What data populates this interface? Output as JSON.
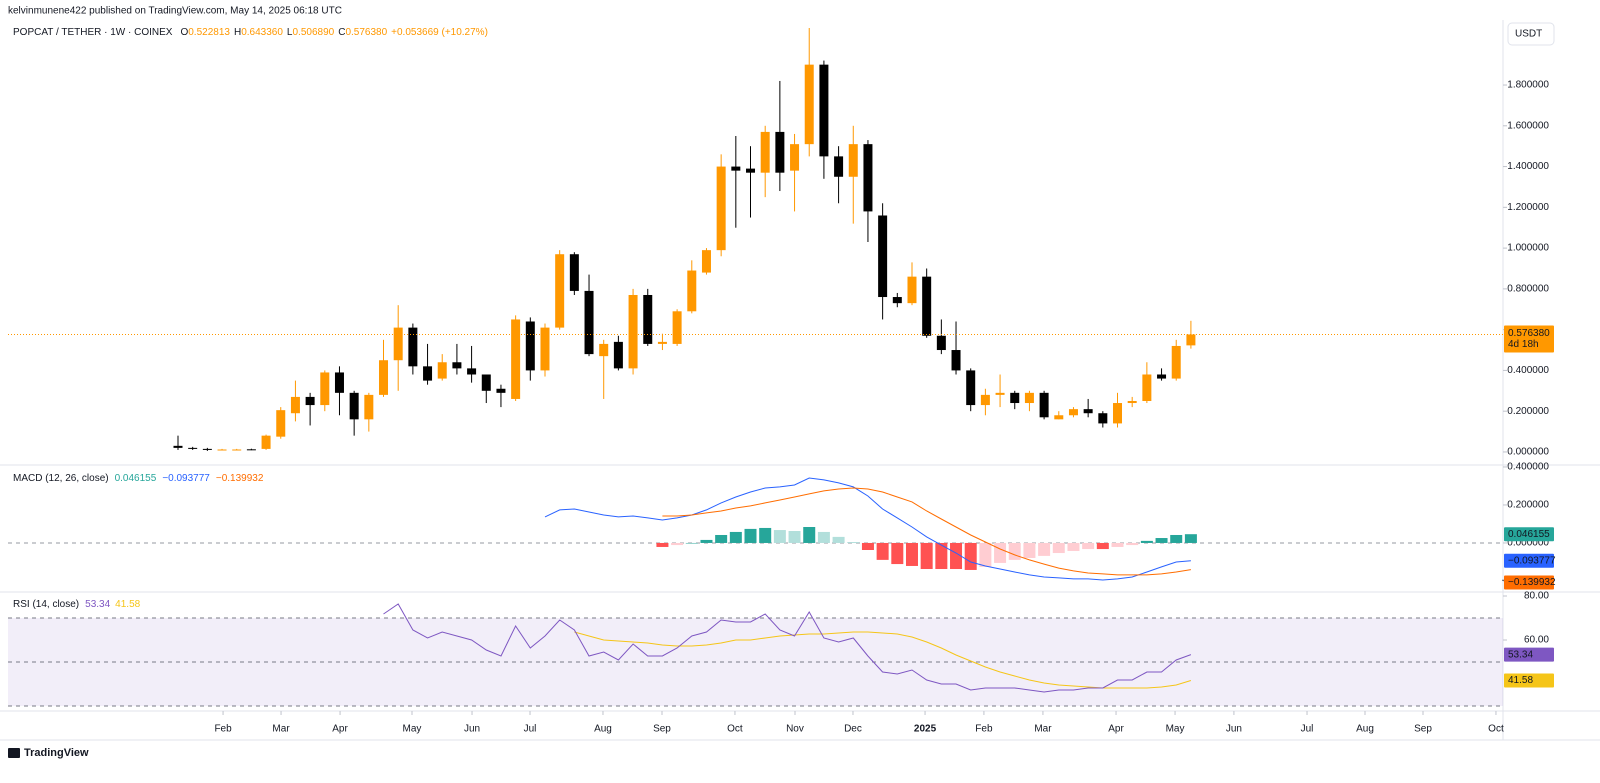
{
  "header": {
    "published": "kelvinmunene422 published on TradingView.com, May 14, 2025 06:18 UTC"
  },
  "footer": {
    "brand": "TradingView"
  },
  "chart_data": [
    {
      "type": "candlestick",
      "title": "POPCAT / TETHER · 1W · COINEX",
      "currency": "USDT",
      "legend": [
        {
          "key": "O",
          "value": "0.522813"
        },
        {
          "key": "H",
          "value": "0.643360"
        },
        {
          "key": "L",
          "value": "0.506890"
        },
        {
          "key": "C",
          "value": "0.576380"
        }
      ],
      "change": "+0.053669 (+10.27%)",
      "price_label": "0.576380",
      "countdown": "4d 18h",
      "up_color": "#ff9800",
      "down_color": "#000000",
      "x": [
        0,
        1,
        2,
        3,
        4,
        5,
        6,
        7,
        8,
        9,
        10,
        11,
        12,
        13,
        14,
        15,
        16,
        17,
        18,
        19,
        20,
        21,
        22,
        23,
        24,
        25,
        26,
        27,
        28,
        29,
        30,
        31,
        32,
        33,
        34,
        35,
        36,
        37,
        38,
        39,
        40,
        41,
        42,
        43,
        44,
        45,
        46,
        47,
        48,
        49,
        50,
        51,
        52,
        53,
        54,
        55,
        56,
        57,
        58,
        59,
        60,
        61,
        62,
        63,
        64,
        65,
        66,
        67,
        68,
        69
      ],
      "open": [
        0.03,
        0.02,
        0.015,
        0.01,
        0.01,
        0.013,
        0.015,
        0.075,
        0.19,
        0.27,
        0.23,
        0.39,
        0.29,
        0.16,
        0.28,
        0.45,
        0.61,
        0.42,
        0.36,
        0.44,
        0.41,
        0.38,
        0.31,
        0.26,
        0.64,
        0.4,
        0.61,
        0.97,
        0.79,
        0.47,
        0.54,
        0.41,
        0.77,
        0.53,
        0.53,
        0.69,
        0.88,
        0.99,
        1.4,
        1.39,
        1.37,
        1.57,
        1.38,
        1.51,
        1.9,
        1.45,
        1.35,
        1.51,
        1.16,
        0.76,
        0.73,
        0.86,
        0.57,
        0.5,
        0.4,
        0.23,
        0.28,
        0.29,
        0.24,
        0.29,
        0.16,
        0.18,
        0.21,
        0.19,
        0.14,
        0.24,
        0.25,
        0.38,
        0.36,
        0.522813
      ],
      "high": [
        0.08,
        0.025,
        0.02,
        0.015,
        0.015,
        0.016,
        0.085,
        0.22,
        0.35,
        0.29,
        0.4,
        0.42,
        0.3,
        0.29,
        0.55,
        0.72,
        0.63,
        0.53,
        0.48,
        0.53,
        0.52,
        0.38,
        0.33,
        0.67,
        0.66,
        0.63,
        0.99,
        0.98,
        0.87,
        0.55,
        0.57,
        0.8,
        0.8,
        0.58,
        0.7,
        0.94,
        1.0,
        1.46,
        1.55,
        1.5,
        1.6,
        1.82,
        1.56,
        2.08,
        1.92,
        1.5,
        1.6,
        1.53,
        1.22,
        0.78,
        0.93,
        0.9,
        0.65,
        0.64,
        0.41,
        0.31,
        0.38,
        0.3,
        0.3,
        0.3,
        0.2,
        0.22,
        0.26,
        0.2,
        0.29,
        0.27,
        0.44,
        0.41,
        0.55,
        0.64336
      ],
      "low": [
        0.01,
        0.01,
        0.005,
        0.008,
        0.008,
        0.009,
        0.01,
        0.065,
        0.15,
        0.13,
        0.2,
        0.18,
        0.08,
        0.1,
        0.27,
        0.3,
        0.38,
        0.33,
        0.35,
        0.38,
        0.34,
        0.24,
        0.22,
        0.25,
        0.35,
        0.37,
        0.6,
        0.77,
        0.47,
        0.26,
        0.4,
        0.38,
        0.52,
        0.5,
        0.52,
        0.68,
        0.87,
        0.96,
        1.1,
        1.15,
        1.25,
        1.28,
        1.18,
        1.45,
        1.34,
        1.22,
        1.12,
        1.03,
        0.65,
        0.71,
        0.72,
        0.56,
        0.48,
        0.38,
        0.2,
        0.18,
        0.22,
        0.21,
        0.2,
        0.16,
        0.16,
        0.17,
        0.17,
        0.12,
        0.12,
        0.22,
        0.24,
        0.35,
        0.35,
        0.50689
      ],
      "close": [
        0.02,
        0.015,
        0.01,
        0.012,
        0.012,
        0.01,
        0.08,
        0.205,
        0.27,
        0.23,
        0.39,
        0.29,
        0.16,
        0.28,
        0.45,
        0.61,
        0.42,
        0.35,
        0.44,
        0.41,
        0.38,
        0.3,
        0.29,
        0.65,
        0.4,
        0.61,
        0.97,
        0.79,
        0.48,
        0.53,
        0.41,
        0.77,
        0.53,
        0.54,
        0.69,
        0.89,
        0.99,
        1.4,
        1.38,
        1.37,
        1.57,
        1.37,
        1.51,
        1.9,
        1.45,
        1.35,
        1.51,
        1.18,
        0.76,
        0.73,
        0.86,
        0.57,
        0.5,
        0.4,
        0.23,
        0.28,
        0.29,
        0.24,
        0.29,
        0.17,
        0.18,
        0.21,
        0.19,
        0.14,
        0.24,
        0.25,
        0.38,
        0.36,
        0.52,
        0.57638
      ],
      "xlim": [
        -11.58,
        90.26
      ],
      "xticks": [
        {
          "value": 3.07,
          "label": "Feb"
        },
        {
          "value": 7.02,
          "label": "Mar"
        },
        {
          "value": 11.04,
          "label": "Apr"
        },
        {
          "value": 15.94,
          "label": "May"
        },
        {
          "value": 20.03,
          "label": "Jun"
        },
        {
          "value": 23.98,
          "label": "Jul"
        },
        {
          "value": 28.95,
          "label": "Aug"
        },
        {
          "value": 32.97,
          "label": "Sep"
        },
        {
          "value": 37.94,
          "label": "Oct"
        },
        {
          "value": 42.03,
          "label": "Nov"
        },
        {
          "value": 45.98,
          "label": "Dec"
        },
        {
          "value": 50.89,
          "label": "2025"
        },
        {
          "value": 54.9,
          "label": "Feb"
        },
        {
          "value": 58.92,
          "label": "Mar"
        },
        {
          "value": 63.9,
          "label": "Apr"
        },
        {
          "value": 67.92,
          "label": "May"
        },
        {
          "value": 71.93,
          "label": "Jun"
        },
        {
          "value": 76.91,
          "label": "Jul"
        },
        {
          "value": 80.86,
          "label": "Aug"
        },
        {
          "value": 84.81,
          "label": "Sep"
        },
        {
          "value": 89.78,
          "label": "Oct"
        }
      ],
      "ylim": [
        -0.064,
        2.119
      ],
      "yticks": [
        {
          "value": 0,
          "label": "0.000000"
        },
        {
          "value": 0.2,
          "label": "0.200000"
        },
        {
          "value": 0.4,
          "label": "0.400000"
        },
        {
          "value": 0.6,
          "label": "0.600000"
        },
        {
          "value": 0.8,
          "label": "0.800000"
        },
        {
          "value": 1,
          "label": "1.000000"
        },
        {
          "value": 1.2,
          "label": "1.200000"
        },
        {
          "value": 1.4,
          "label": "1.400000"
        },
        {
          "value": 1.6,
          "label": "1.600000"
        },
        {
          "value": 1.8,
          "label": "1.800000"
        }
      ]
    },
    {
      "type": "macd",
      "title": "MACD (12, 26, close)",
      "x": [
        0,
        1,
        2,
        3,
        4,
        5,
        6,
        7,
        8,
        9,
        10,
        11,
        12,
        13,
        14,
        15,
        16,
        17,
        18,
        19,
        20,
        21,
        22,
        23,
        24,
        25,
        26,
        27,
        28,
        29,
        30,
        31,
        32,
        33,
        34,
        35,
        36,
        37,
        38,
        39,
        40,
        41,
        42,
        43,
        44,
        45,
        46,
        47,
        48,
        49,
        50,
        51,
        52,
        53,
        54,
        55,
        56,
        57,
        58,
        59,
        60,
        61,
        62,
        63,
        64,
        65,
        66,
        67,
        68,
        69
      ],
      "histogram_colors": {
        "rising_above": "#26a69a",
        "falling_above": "#b2dfdb",
        "rising_below": "#ffcdd2",
        "falling_below": "#ff5252"
      },
      "series": [
        {
          "name": "Histogram",
          "color": "#26a69a",
          "values": [
            null,
            null,
            null,
            null,
            null,
            null,
            null,
            null,
            null,
            null,
            null,
            null,
            null,
            null,
            null,
            null,
            null,
            null,
            null,
            null,
            null,
            null,
            null,
            null,
            null,
            null,
            null,
            null,
            null,
            null,
            null,
            null,
            null,
            -0.021,
            -0.011,
            0,
            0.016,
            0.042,
            0.058,
            0.074,
            0.079,
            0.068,
            0.063,
            0.084,
            0.058,
            0.032,
            0.005,
            -0.037,
            -0.089,
            -0.111,
            -0.121,
            -0.137,
            -0.137,
            -0.137,
            -0.142,
            -0.126,
            -0.105,
            -0.089,
            -0.079,
            -0.068,
            -0.053,
            -0.042,
            -0.032,
            -0.032,
            -0.021,
            -0.011,
            0.011,
            0.026,
            0.042,
            0.046155
          ]
        },
        {
          "name": "MACD",
          "color": "#2962ff",
          "value_label": "−0.093777",
          "values": [
            null,
            null,
            null,
            null,
            null,
            null,
            null,
            null,
            null,
            null,
            null,
            null,
            null,
            null,
            null,
            null,
            null,
            null,
            null,
            null,
            null,
            null,
            null,
            null,
            null,
            0.137,
            0.174,
            0.179,
            0.163,
            0.147,
            0.137,
            0.142,
            0.132,
            0.121,
            0.132,
            0.147,
            0.174,
            0.211,
            0.242,
            0.268,
            0.289,
            0.295,
            0.305,
            0.342,
            0.332,
            0.316,
            0.295,
            0.247,
            0.179,
            0.132,
            0.084,
            0.032,
            -0.011,
            -0.053,
            -0.1,
            -0.121,
            -0.137,
            -0.153,
            -0.168,
            -0.179,
            -0.184,
            -0.189,
            -0.189,
            -0.195,
            -0.189,
            -0.179,
            -0.153,
            -0.126,
            -0.1,
            -0.093777
          ]
        },
        {
          "name": "Signal",
          "color": "#ff6d00",
          "value_label": "−0.139932",
          "values": [
            null,
            null,
            null,
            null,
            null,
            null,
            null,
            null,
            null,
            null,
            null,
            null,
            null,
            null,
            null,
            null,
            null,
            null,
            null,
            null,
            null,
            null,
            null,
            null,
            null,
            null,
            null,
            null,
            null,
            null,
            null,
            null,
            null,
            0.142,
            0.142,
            0.147,
            0.158,
            0.168,
            0.184,
            0.195,
            0.211,
            0.226,
            0.242,
            0.258,
            0.274,
            0.284,
            0.289,
            0.284,
            0.268,
            0.242,
            0.216,
            0.168,
            0.126,
            0.084,
            0.042,
            0.005,
            -0.032,
            -0.063,
            -0.089,
            -0.111,
            -0.132,
            -0.147,
            -0.158,
            -0.163,
            -0.168,
            -0.168,
            -0.168,
            -0.163,
            -0.153,
            -0.139932
          ]
        }
      ],
      "ylim": [
        -0.258,
        0.405
      ],
      "yticks": [
        {
          "value": -0.2,
          "label": "−0.200000"
        },
        {
          "value": 0,
          "label": "0.000000"
        },
        {
          "value": 0.2,
          "label": "0.200000"
        },
        {
          "value": 0.4,
          "label": "0.400000"
        }
      ]
    },
    {
      "type": "rsi",
      "title": "RSI (14, close)",
      "x": [
        0,
        1,
        2,
        3,
        4,
        5,
        6,
        7,
        8,
        9,
        10,
        11,
        12,
        13,
        14,
        15,
        16,
        17,
        18,
        19,
        20,
        21,
        22,
        23,
        24,
        25,
        26,
        27,
        28,
        29,
        30,
        31,
        32,
        33,
        34,
        35,
        36,
        37,
        38,
        39,
        40,
        41,
        42,
        43,
        44,
        45,
        46,
        47,
        48,
        49,
        50,
        51,
        52,
        53,
        54,
        55,
        56,
        57,
        58,
        59,
        60,
        61,
        62,
        63,
        64,
        65,
        66,
        67,
        68,
        69
      ],
      "levels": [
        70,
        50,
        30
      ],
      "band_color": "#7e57c2",
      "series": [
        {
          "name": "RSI",
          "color": "#7e57c2",
          "values": [
            null,
            null,
            null,
            null,
            null,
            null,
            null,
            null,
            null,
            null,
            null,
            null,
            null,
            null,
            71.82,
            76.36,
            64.55,
            60.91,
            63.64,
            61.82,
            60,
            55.45,
            52.73,
            66.36,
            56.36,
            61.82,
            69.09,
            64.55,
            52.73,
            54.55,
            50.91,
            58.18,
            52.73,
            52.73,
            56.36,
            61.82,
            63.64,
            69.09,
            68.18,
            68.18,
            71.82,
            64.55,
            61.82,
            72.73,
            60.91,
            59.09,
            60.91,
            52.73,
            45.45,
            44.55,
            46.36,
            41.82,
            40,
            40,
            37.27,
            38.18,
            38.18,
            38.18,
            37.27,
            36.36,
            37.27,
            37.27,
            38.18,
            38.18,
            41.82,
            41.82,
            45.45,
            45.45,
            50.91,
            53.34
          ]
        },
        {
          "name": "RSI-based MA",
          "color": "#f5c518",
          "values": [
            null,
            null,
            null,
            null,
            null,
            null,
            null,
            null,
            null,
            null,
            null,
            null,
            null,
            null,
            null,
            null,
            null,
            null,
            null,
            null,
            null,
            null,
            null,
            null,
            null,
            null,
            null,
            63.64,
            61.82,
            60,
            59.55,
            59.09,
            58.64,
            57.73,
            57.27,
            57.27,
            57.73,
            58.64,
            60,
            60,
            60.91,
            61.82,
            62.27,
            62.73,
            62.73,
            63.18,
            63.64,
            63.64,
            63.18,
            62.73,
            61.36,
            59.09,
            56.36,
            53.18,
            50.45,
            47.73,
            45.45,
            43.64,
            41.82,
            40.45,
            39.55,
            39.09,
            38.64,
            38.18,
            38.18,
            38.18,
            38.18,
            38.64,
            39.55,
            41.58
          ]
        }
      ],
      "ylim": [
        28.18,
        81.36
      ],
      "yticks": [
        {
          "value": 60,
          "label": "60.00"
        },
        {
          "value": 80,
          "label": "80.00"
        }
      ]
    }
  ]
}
